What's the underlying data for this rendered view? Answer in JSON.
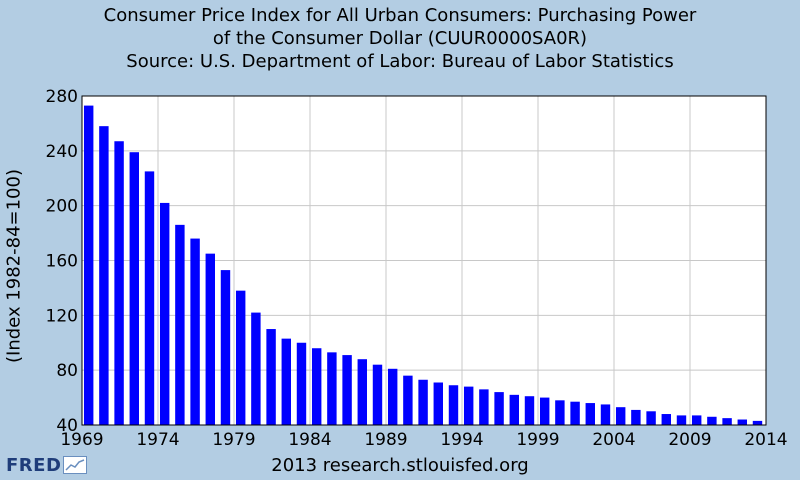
{
  "chart_data": {
    "type": "bar",
    "title_lines": [
      "Consumer Price Index for All Urban Consumers: Purchasing Power",
      "of the Consumer Dollar (CUUR0000SA0R)",
      "Source: U.S. Department of Labor: Bureau of Labor Statistics"
    ],
    "ylabel": "(Index 1982-84=100)",
    "xlabel": "",
    "ylim": [
      40,
      280
    ],
    "yticks": [
      40,
      80,
      120,
      160,
      200,
      240,
      280
    ],
    "xlim": [
      1969,
      2014
    ],
    "xticks": [
      1969,
      1974,
      1979,
      1984,
      1989,
      1994,
      1999,
      2004,
      2009,
      2014
    ],
    "x": [
      1969,
      1970,
      1971,
      1972,
      1973,
      1974,
      1975,
      1976,
      1977,
      1978,
      1979,
      1980,
      1981,
      1982,
      1983,
      1984,
      1985,
      1986,
      1987,
      1988,
      1989,
      1990,
      1991,
      1992,
      1993,
      1994,
      1995,
      1996,
      1997,
      1998,
      1999,
      2000,
      2001,
      2002,
      2003,
      2004,
      2005,
      2006,
      2007,
      2008,
      2009,
      2010,
      2011,
      2012,
      2013
    ],
    "values": [
      273,
      258,
      247,
      239,
      225,
      202,
      186,
      176,
      165,
      153,
      138,
      122,
      110,
      103,
      100,
      96,
      93,
      91,
      88,
      84,
      81,
      76,
      73,
      71,
      69,
      68,
      66,
      64,
      62,
      61,
      60,
      58,
      57,
      56,
      55,
      53,
      51,
      50,
      48,
      47,
      47,
      46,
      45,
      44,
      43
    ],
    "bar_color": "#0000ff",
    "grid": true
  },
  "footer": {
    "logo_text": "FRED",
    "credit": "2013 research.stlouisfed.org"
  }
}
